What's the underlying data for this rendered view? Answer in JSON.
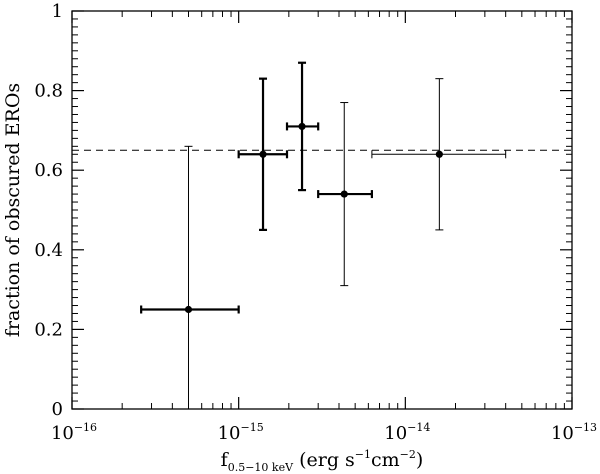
{
  "chart_data": {
    "type": "scatter",
    "title": "",
    "xlabel": {
      "parts": [
        {
          "text": "f",
          "style": "normal"
        },
        {
          "text": "0.5−10 keV",
          "style": "sub"
        },
        {
          "text": " (erg s",
          "style": "normal"
        },
        {
          "text": "−1",
          "style": "sup"
        },
        {
          "text": "cm",
          "style": "normal"
        },
        {
          "text": "−2",
          "style": "sup"
        },
        {
          "text": ")",
          "style": "normal"
        }
      ]
    },
    "ylabel": "fraction of obscured EROs",
    "xscale": "log",
    "xlim": [
      1e-16,
      1e-13
    ],
    "ylim": [
      0,
      1
    ],
    "x_ticks": [
      {
        "value": 1e-16,
        "base": "10",
        "exp": "−16"
      },
      {
        "value": 1e-15,
        "base": "10",
        "exp": "−15"
      },
      {
        "value": 1e-14,
        "base": "10",
        "exp": "−14"
      },
      {
        "value": 1e-13,
        "base": "10",
        "exp": "−13"
      }
    ],
    "y_ticks": [
      {
        "value": 0,
        "label": "0"
      },
      {
        "value": 0.2,
        "label": "0.2"
      },
      {
        "value": 0.4,
        "label": "0.4"
      },
      {
        "value": 0.6,
        "label": "0.6"
      },
      {
        "value": 0.8,
        "label": "0.8"
      },
      {
        "value": 1,
        "label": "1"
      }
    ],
    "reference_line": {
      "y": 0.65,
      "style": "dashed"
    },
    "grid": false,
    "series": [
      {
        "points": [
          {
            "x": 5e-16,
            "y": 0.25,
            "xlo": 2.6e-16,
            "xhi": 1e-15,
            "ylo": 0.0,
            "yhi": 0.66,
            "weight": "bold-x"
          },
          {
            "x": 1.4e-15,
            "y": 0.64,
            "xlo": 1e-15,
            "xhi": 1.95e-15,
            "ylo": 0.45,
            "yhi": 0.83,
            "weight": "bold"
          },
          {
            "x": 2.4e-15,
            "y": 0.71,
            "xlo": 1.95e-15,
            "xhi": 3e-15,
            "ylo": 0.55,
            "yhi": 0.87,
            "weight": "bold"
          },
          {
            "x": 4.3e-15,
            "y": 0.54,
            "xlo": 3e-15,
            "xhi": 6.3e-15,
            "ylo": 0.31,
            "yhi": 0.77,
            "weight": "bold-x"
          },
          {
            "x": 1.6e-14,
            "y": 0.64,
            "xlo": 6.3e-15,
            "xhi": 4e-14,
            "ylo": 0.45,
            "yhi": 0.83,
            "weight": "thin"
          }
        ]
      }
    ]
  }
}
